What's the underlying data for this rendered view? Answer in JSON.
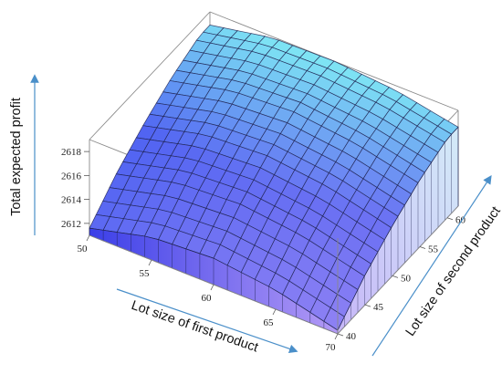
{
  "chart_data": {
    "type": "surface3d",
    "title": "",
    "xlabel": "Lot size of first product",
    "ylabel": "Lot size of second product",
    "zlabel": "Total expected profit",
    "xlim": [
      50,
      70
    ],
    "ylim": [
      40,
      62
    ],
    "zlim": [
      2611,
      2619
    ],
    "x_ticks": [
      "50",
      "55",
      "60",
      "65",
      "70"
    ],
    "y_ticks": [
      "40",
      "45",
      "50",
      "55",
      "60"
    ],
    "z_ticks": [
      "2612",
      "2614",
      "2616",
      "2618"
    ],
    "grid_lines": 18,
    "surface": {
      "description_of_values": "profit peaks near first lot 58 and rises toward second lot 62",
      "x": [
        50,
        55,
        60,
        65,
        70
      ],
      "y": [
        40,
        45,
        50,
        55,
        60
      ],
      "z": [
        [
          2611.6,
          2613.8,
          2615.5,
          2616.9,
          2617.9
        ],
        [
          2612.9,
          2615.1,
          2616.8,
          2618.1,
          2618.9
        ],
        [
          2613.2,
          2615.4,
          2617.1,
          2618.4,
          2619.0
        ],
        [
          2612.6,
          2614.8,
          2616.5,
          2617.8,
          2618.6
        ],
        [
          2611.3,
          2613.5,
          2615.2,
          2616.6,
          2617.6
        ]
      ]
    },
    "colors": {
      "low": "#a58cf5",
      "mid": "#4f63f2",
      "high": "#7fe8f4",
      "mesh": "#1e2250",
      "box": "#8a8a8a",
      "arrow": "#4a8fc9"
    }
  }
}
